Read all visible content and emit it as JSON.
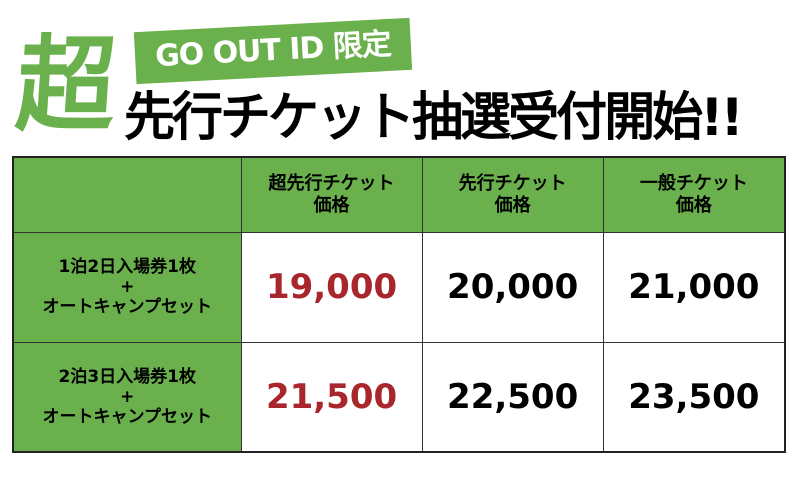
{
  "title": {
    "badge": "GO OUT ID 限定",
    "super": "超",
    "headline": "先行チケット抽選受付開始!!"
  },
  "colors": {
    "green": "#6ab04c",
    "red": "#a8262c"
  },
  "table": {
    "headers": [
      {
        "l1": "超先行チケット",
        "l2": "価格"
      },
      {
        "l1": "先行チケット",
        "l2": "価格"
      },
      {
        "l1": "一般チケット",
        "l2": "価格"
      }
    ],
    "rows": [
      {
        "l1": "1泊2日入場券1枚",
        "l2": "+",
        "l3": "オートキャンプセット",
        "prices": [
          "19,000",
          "20,000",
          "21,000"
        ]
      },
      {
        "l1": "2泊3日入場券1枚",
        "l2": "+",
        "l3": "オートキャンプセット",
        "prices": [
          "21,500",
          "22,500",
          "23,500"
        ]
      }
    ]
  }
}
